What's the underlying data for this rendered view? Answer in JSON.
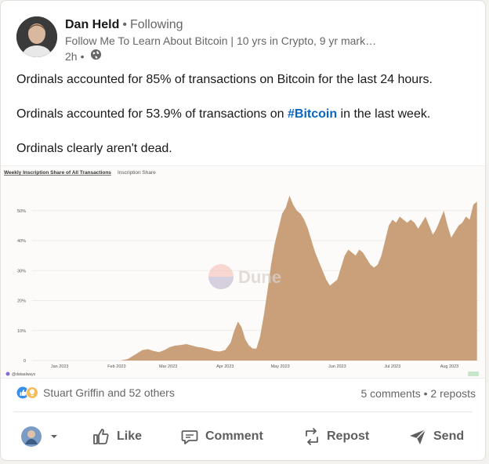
{
  "post": {
    "author": {
      "name": "Dan Held",
      "follow_status": "Following",
      "headline": "Follow Me To Learn About Bitcoin | 10 yrs in Crypto, 9 yr mark…",
      "time": "2h",
      "visibility_icon": "globe-icon"
    },
    "text": {
      "para1": "Ordinals accounted for 85% of transactions on Bitcoin for the last 24 hours.",
      "para2_before": "Ordinals accounted for 53.9% of transactions on ",
      "para2_hashtag": "#Bitcoin",
      "para2_after": " in the last week.",
      "para3": "Ordinals clearly aren't dead."
    }
  },
  "chart_data": {
    "type": "area",
    "title": "Weekly Inscription Share of All Transactions",
    "subtitle": "Inscription Share",
    "watermark": "Dune",
    "author_tag": "@dataalways",
    "ylabel": "",
    "xlabel": "",
    "ylim": [
      0,
      0.57
    ],
    "y_ticks": [
      "0",
      "10%",
      "20%",
      "30%",
      "40%",
      "50%"
    ],
    "y_tick_values": [
      0,
      0.1,
      0.2,
      0.3,
      0.4,
      0.5
    ],
    "x_ticks": [
      "Jan 2023",
      "Feb 2023",
      "Mar 2023",
      "Apr 2023",
      "May 2023",
      "Jun 2023",
      "Jul 2023",
      "Aug 2023"
    ],
    "x_tick_days": [
      15,
      46,
      74,
      105,
      135,
      166,
      196,
      227
    ],
    "x_range_days": [
      0,
      243
    ],
    "series": [
      {
        "color": "#c9a07a",
        "x_days": [
          0,
          48,
          52,
          56,
          60,
          63,
          66,
          69,
          72,
          75,
          78,
          81,
          84,
          87,
          90,
          93,
          96,
          99,
          102,
          105,
          108,
          110,
          112,
          114,
          116,
          118,
          120,
          122,
          124,
          126,
          128,
          130,
          132,
          134,
          136,
          138,
          140,
          142,
          144,
          146,
          148,
          150,
          152,
          154,
          156,
          158,
          160,
          162,
          164,
          166,
          168,
          170,
          172,
          174,
          176,
          178,
          180,
          182,
          184,
          186,
          188,
          190,
          192,
          194,
          196,
          198,
          200,
          202,
          204,
          206,
          208,
          210,
          212,
          214,
          216,
          218,
          220,
          222,
          224,
          226,
          228,
          230,
          232,
          234,
          236,
          238,
          240,
          242
        ],
        "values": [
          0,
          0,
          0.005,
          0.02,
          0.035,
          0.038,
          0.032,
          0.028,
          0.035,
          0.045,
          0.05,
          0.052,
          0.055,
          0.05,
          0.045,
          0.043,
          0.038,
          0.032,
          0.03,
          0.035,
          0.06,
          0.1,
          0.13,
          0.11,
          0.07,
          0.05,
          0.04,
          0.04,
          0.08,
          0.15,
          0.23,
          0.32,
          0.39,
          0.44,
          0.49,
          0.51,
          0.55,
          0.52,
          0.5,
          0.49,
          0.47,
          0.44,
          0.4,
          0.36,
          0.33,
          0.3,
          0.27,
          0.25,
          0.26,
          0.27,
          0.31,
          0.35,
          0.37,
          0.36,
          0.35,
          0.37,
          0.36,
          0.34,
          0.32,
          0.31,
          0.32,
          0.35,
          0.4,
          0.45,
          0.47,
          0.46,
          0.48,
          0.47,
          0.46,
          0.47,
          0.46,
          0.44,
          0.46,
          0.48,
          0.45,
          0.42,
          0.44,
          0.47,
          0.5,
          0.45,
          0.41,
          0.43,
          0.45,
          0.46,
          0.48,
          0.47,
          0.52,
          0.53
        ]
      }
    ]
  },
  "social": {
    "reactors": "Stuart Griffin and 52 others",
    "counts": "5 comments • 2 reposts"
  },
  "actions": {
    "like": "Like",
    "comment": "Comment",
    "repost": "Repost",
    "send": "Send"
  }
}
